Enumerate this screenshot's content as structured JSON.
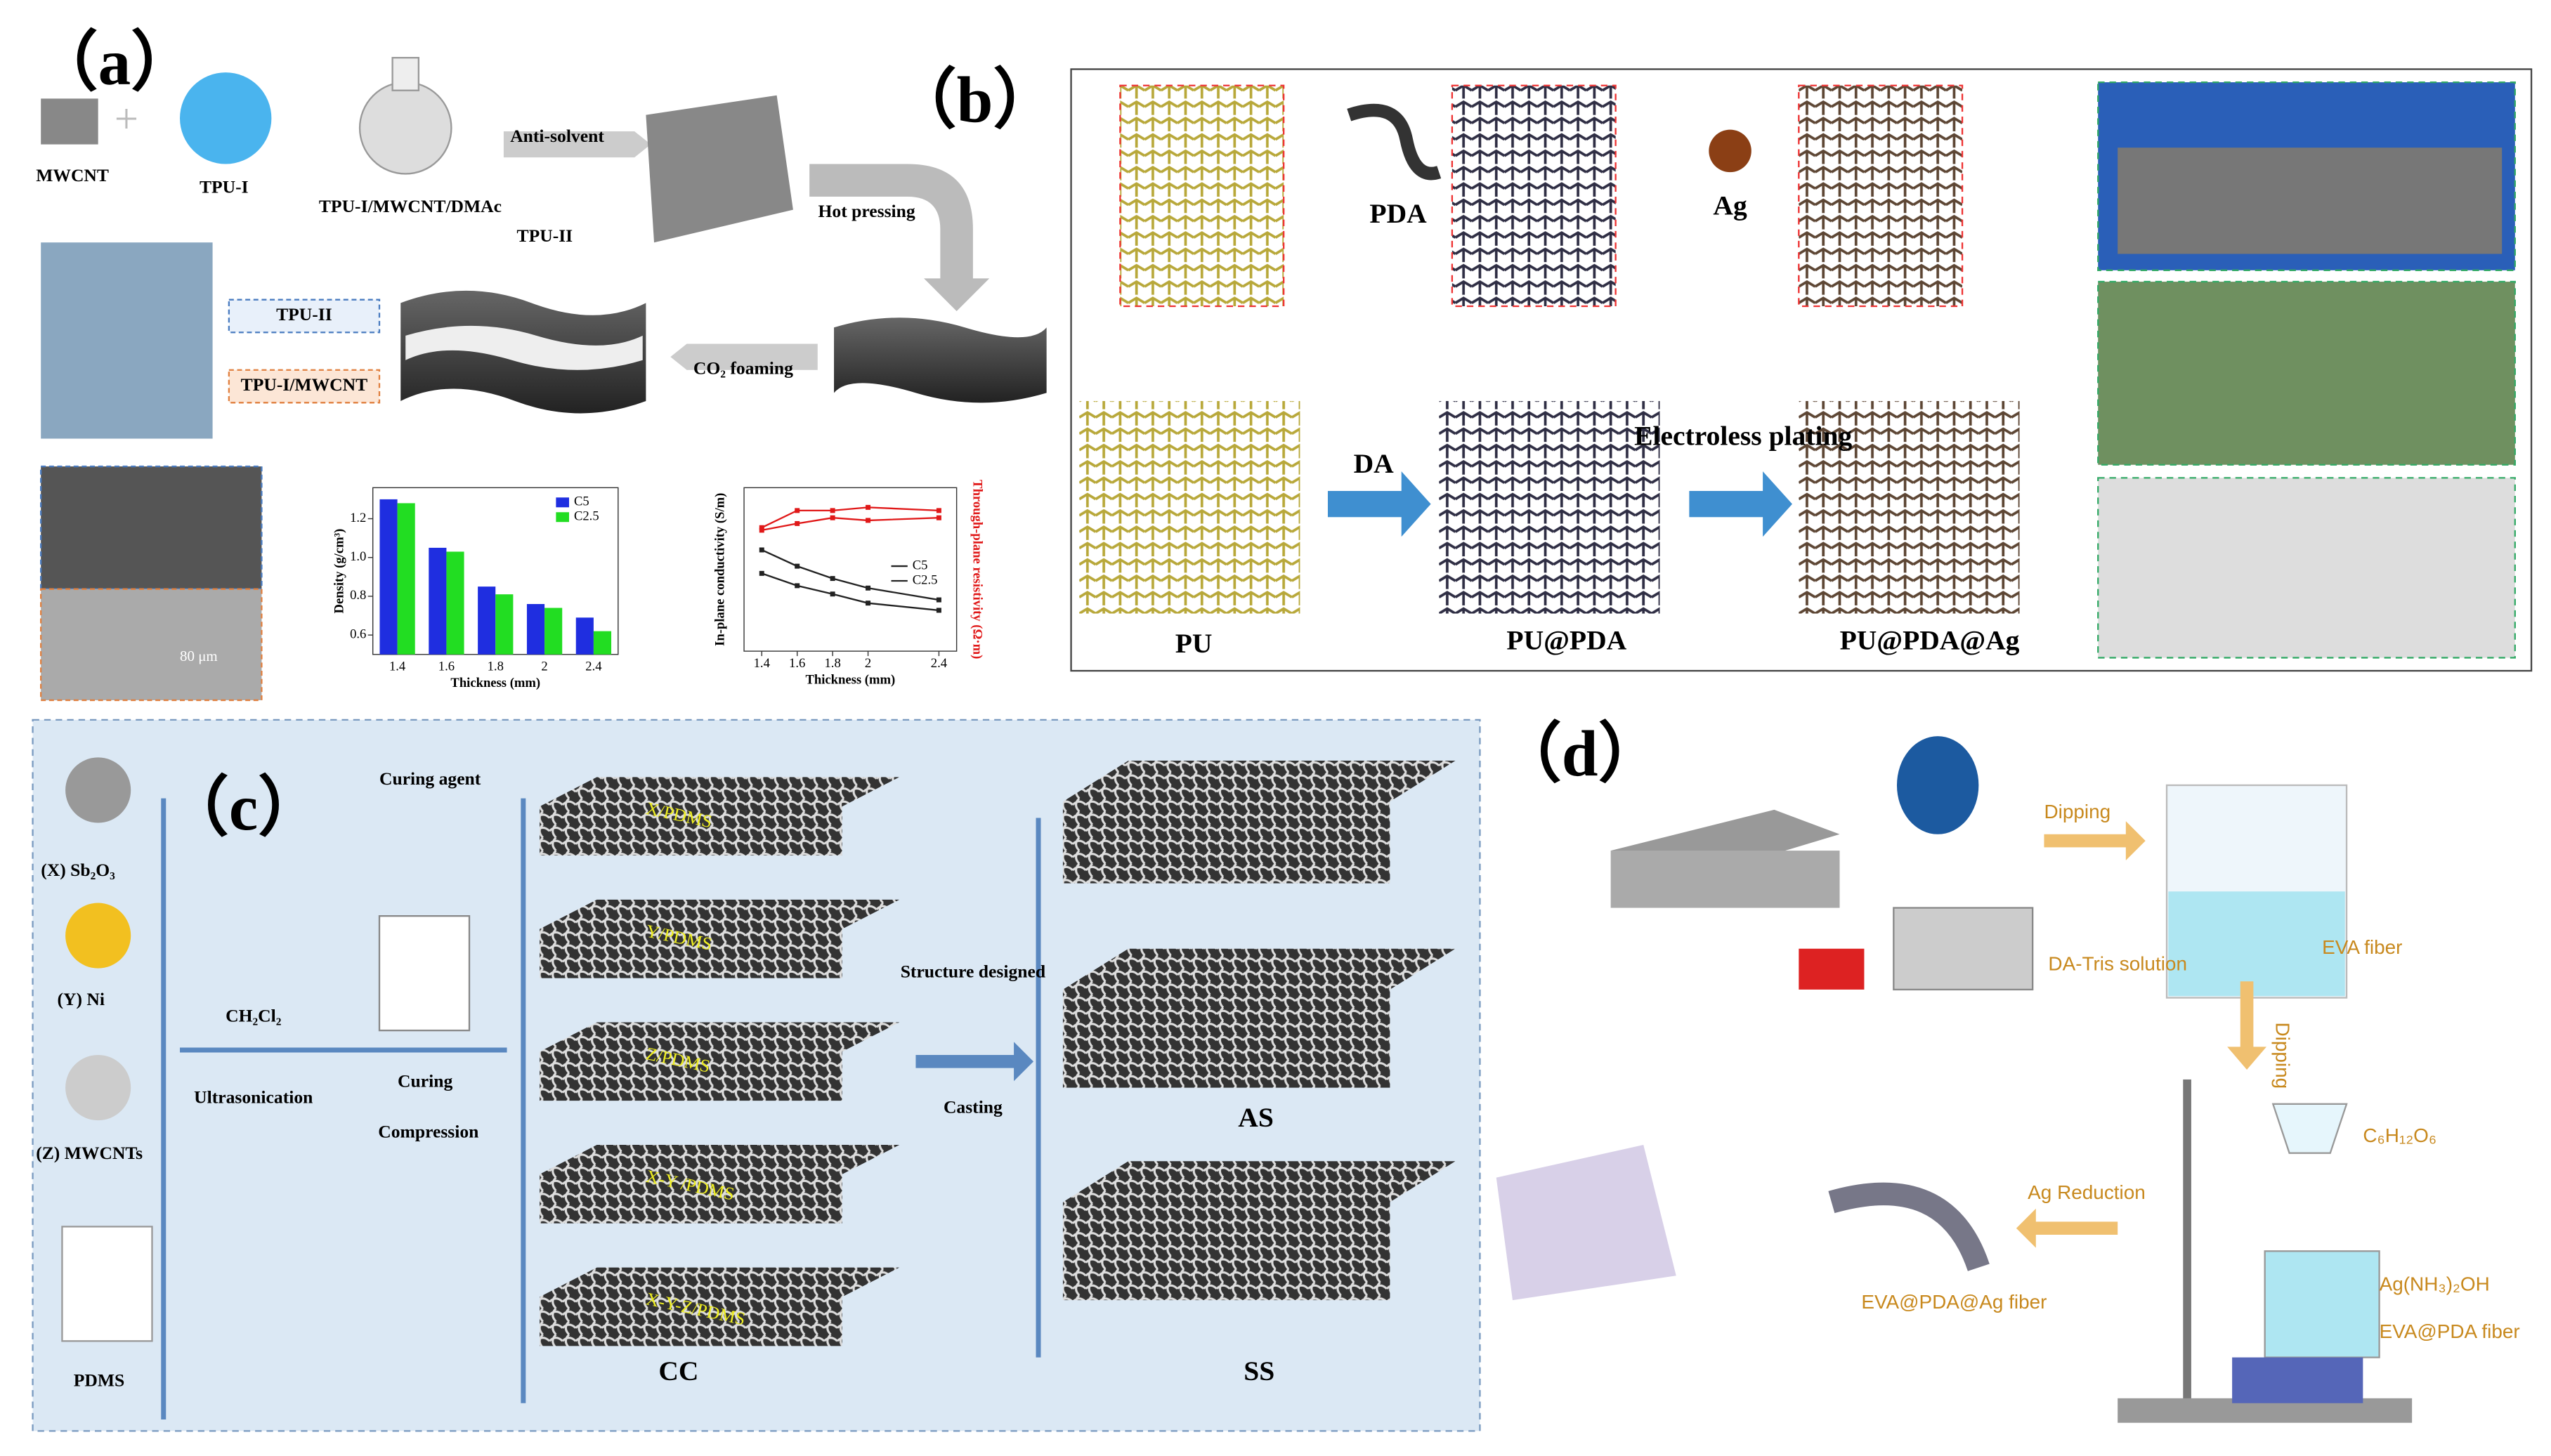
{
  "panel_a": {
    "label": "（a）",
    "mwcnt": "MWCNT",
    "tpu1": "TPU-I",
    "flask": "TPU-I/MWCNT/DMAc",
    "antisolvent": "Anti-solvent",
    "tpu2": "TPU-II",
    "hot_pressing": "Hot pressing",
    "box_tpu2": "TPU-II",
    "box_tpu1": "TPU-I/MWCNT",
    "foaming": "CO₂ foaming",
    "scale_bar": "80 μm",
    "density_chart": {
      "type": "bar",
      "y_label": "Density (g/cm³)",
      "x_label": "Thickness (mm)",
      "categories": [
        "1.4",
        "1.6",
        "1.8",
        "2",
        "2.4"
      ],
      "series": [
        {
          "name": "C5",
          "color": "#1f2ee0",
          "values": [
            1.3,
            1.05,
            0.85,
            0.76,
            0.69
          ]
        },
        {
          "name": "C2.5",
          "color": "#22dd22",
          "values": [
            1.28,
            1.03,
            0.81,
            0.74,
            0.62
          ]
        }
      ],
      "ylim": [
        0.5,
        1.36
      ],
      "yticks": [
        {
          "value": 0.6,
          "label": "0.6"
        },
        {
          "value": 0.8,
          "label": "0.8"
        },
        {
          "value": 1,
          "label": "1.0"
        },
        {
          "value": 1.2,
          "label": "1.2"
        }
      ]
    },
    "conductivity_chart": {
      "type": "line",
      "y_label": "In-plane conductivity (S/m)",
      "y2_label": "Through-plane resistivity (Ω·m)",
      "x_label": "Thickness (mm)",
      "x": [
        1.4,
        1.6,
        1.8,
        2,
        2.4
      ],
      "xlim": [
        1.3,
        2.5
      ],
      "xticks": [
        1.4,
        1.6,
        1.8,
        2,
        2.4
      ],
      "ylim": [
        1,
        10000
      ],
      "y2lim": [
        1,
        100000
      ],
      "log_scale": true,
      "series": [
        {
          "name": "C5",
          "color": "#222222",
          "values": [
            300,
            120,
            60,
            35,
            18
          ]
        },
        {
          "name": "C2.5",
          "color": "#222222",
          "values": [
            80,
            40,
            25,
            15,
            10
          ]
        },
        {
          "name": "C5",
          "color": "#e01818",
          "axis": "y2",
          "values": [
            6000,
            20000,
            20000,
            25000,
            20000
          ],
          "in_legend": false
        },
        {
          "name": "C2.5",
          "color": "#e01818",
          "axis": "y2",
          "values": [
            5000,
            8000,
            12000,
            10000,
            12000
          ],
          "in_legend": false
        }
      ]
    }
  },
  "panel_b": {
    "label": "（b）",
    "pda": "PDA",
    "ag": "Ag",
    "da": "DA",
    "plating": "Electroless plating",
    "pu": "PU",
    "pu_pda": "PU@PDA",
    "pu_pda_ag": "PU@PDA@Ag"
  },
  "panel_c": {
    "label": "（c）",
    "curing_agent": "Curing agent",
    "x": "(X) Sb₂O₃",
    "y": "(Y) Ni",
    "z": "(Z) MWCNTs",
    "pdms": "PDMS",
    "solvent": "CH₂Cl₂",
    "ultrasonication": "Ultrasonication",
    "curing": "Curing",
    "compression": "Compression",
    "layers": [
      "X/PDMS",
      "Y/PDMS",
      "Z/PDMS",
      "X-Y /PDMS",
      "X-Y-Z/PDMS"
    ],
    "cc": "CC",
    "structure": "Structure designed",
    "casting": "Casting",
    "as": "AS",
    "ss": "SS"
  },
  "panel_d": {
    "label": "（d）",
    "dipping1": "Dipping",
    "solution": "DA-Tris solution",
    "eva": "EVA fiber",
    "dipping2": "Dipping",
    "glucose": "C₆H₁₂O₆",
    "reduction": "Ag Reduction",
    "silver": "Ag(NH₃)₂OH",
    "eva_pda": "EVA@PDA fiber",
    "eva_pda_ag": "EVA@PDA@Ag fiber"
  }
}
